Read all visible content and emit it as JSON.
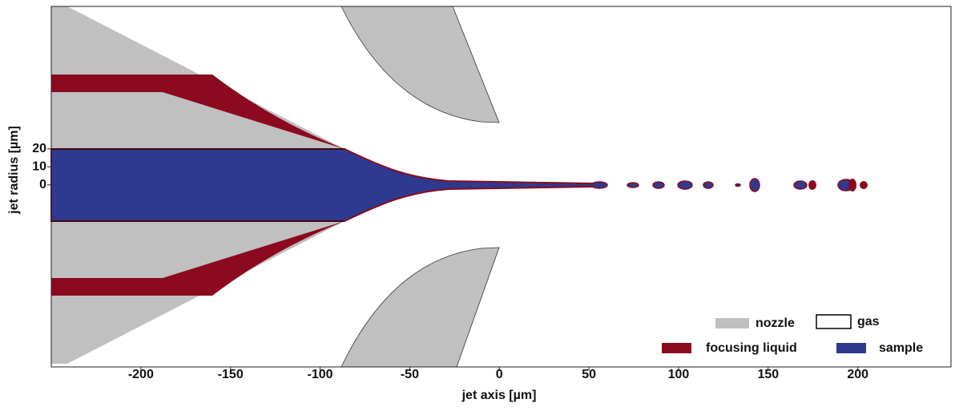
{
  "chart_data": {
    "type": "simulation",
    "xlabel": "jet axis [µm]",
    "ylabel": "jet radius [µm]",
    "xlim": [
      -250,
      252
    ],
    "ylim": [
      -101,
      99
    ],
    "xticks": [
      -200,
      -150,
      -100,
      -50,
      0,
      50,
      100,
      150,
      200
    ],
    "yticks": [
      0,
      10,
      20
    ],
    "legend": [
      {
        "name": "nozzle",
        "color": "#c0c0c0"
      },
      {
        "name": "gas",
        "color": "#ffffff"
      },
      {
        "name": "focusing liquid",
        "color": "#8b0a1f"
      },
      {
        "name": "sample",
        "color": "#2e3a8f"
      }
    ]
  }
}
